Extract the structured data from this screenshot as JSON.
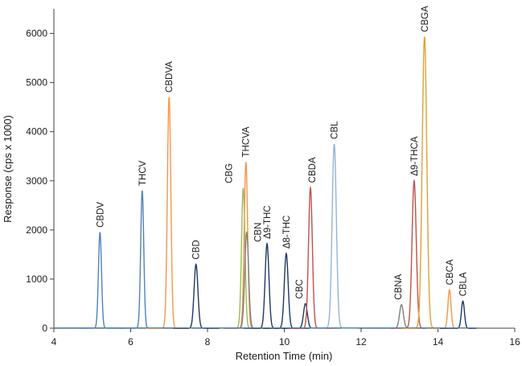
{
  "chart_data": {
    "type": "line",
    "xlabel": "Retention Time (min)",
    "ylabel": "Response (cps x 1000)",
    "xlim": [
      4,
      16
    ],
    "ylim": [
      0,
      6500
    ],
    "x_ticks": [
      "4",
      "6",
      "8",
      "10",
      "12",
      "14",
      "16"
    ],
    "y_ticks": [
      "0",
      "1000",
      "2000",
      "3000",
      "4000",
      "5000",
      "6000"
    ],
    "grid": false,
    "series": [
      {
        "name": "CBDV",
        "color": "#4f81bd",
        "peak_x": 5.2,
        "peak_y": 1950,
        "width": 0.04
      },
      {
        "name": "THCV",
        "color": "#4f81bd",
        "peak_x": 6.3,
        "peak_y": 2800,
        "width": 0.04
      },
      {
        "name": "CBDVA",
        "color": "#f79646",
        "peak_x": 7.0,
        "peak_y": 4700,
        "width": 0.045
      },
      {
        "name": "CBD",
        "color": "#1f3864",
        "peak_x": 7.7,
        "peak_y": 1300,
        "width": 0.05
      },
      {
        "name": "CBG",
        "color": "#9bbb59",
        "peak_x": 8.93,
        "peak_y": 2850,
        "width": 0.045
      },
      {
        "name": "THCVA",
        "color": "#f79646",
        "peak_x": 9.0,
        "peak_y": 3380,
        "width": 0.045
      },
      {
        "name": "CBN",
        "color": "#7f7f7f",
        "peak_x": 9.02,
        "peak_y": 1950,
        "width": 0.05
      },
      {
        "name": "Δ9-THC",
        "color": "#1f3864",
        "peak_x": 9.55,
        "peak_y": 1720,
        "width": 0.05
      },
      {
        "name": "Δ8-THC",
        "color": "#1f3864",
        "peak_x": 10.05,
        "peak_y": 1520,
        "width": 0.05
      },
      {
        "name": "CBC",
        "color": "#1f3864",
        "peak_x": 10.55,
        "peak_y": 500,
        "width": 0.05
      },
      {
        "name": "CBDA",
        "color": "#c0504d",
        "peak_x": 10.68,
        "peak_y": 2860,
        "width": 0.05
      },
      {
        "name": "CBL",
        "color": "#95b3d7",
        "peak_x": 11.3,
        "peak_y": 3750,
        "width": 0.055
      },
      {
        "name": "CBNA",
        "color": "#7f7f7f",
        "peak_x": 13.05,
        "peak_y": 480,
        "width": 0.05
      },
      {
        "name": "Δ9-THCA",
        "color": "#c0504d",
        "peak_x": 13.38,
        "peak_y": 3000,
        "width": 0.055
      },
      {
        "name": "CBGA",
        "color": "#e1a133",
        "peak_x": 13.65,
        "peak_y": 5930,
        "width": 0.06
      },
      {
        "name": "CBCA",
        "color": "#f79646",
        "peak_x": 14.3,
        "peak_y": 780,
        "width": 0.04
      },
      {
        "name": "CBLA",
        "color": "#1f3864",
        "peak_x": 14.65,
        "peak_y": 550,
        "width": 0.04
      }
    ]
  }
}
